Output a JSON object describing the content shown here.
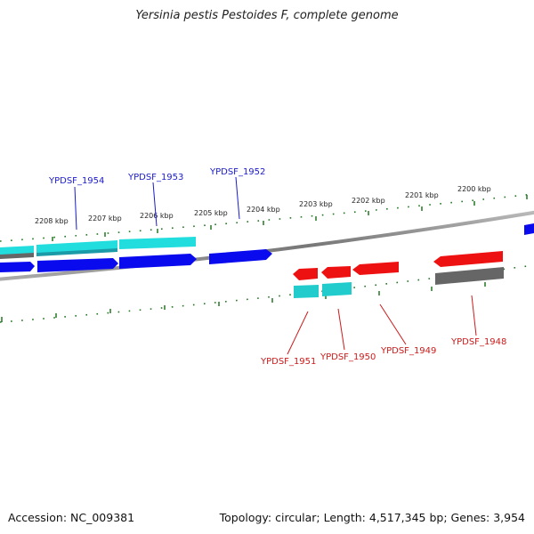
{
  "title": "Yersinia pestis Pestoides F, complete genome",
  "accession_text": "Accession: NC_009381",
  "summary_text": "Topology: circular; Length: 4,517,345 bp; Genes: 3,954",
  "colors": {
    "forward_label": "#1a1acc",
    "reverse_label": "#cc1a1a",
    "cds_forward": "#0a0aee",
    "cds_reverse": "#ee1111",
    "gene_forward": "#22dddd",
    "gene_reverse": "#22cccc",
    "gene_other": "#666666",
    "ticks": "#227722",
    "backbone": "#888888"
  },
  "kbp_labels": [
    "2208 kbp",
    "2207 kbp",
    "2206 kbp",
    "2205 kbp",
    "2204 kbp",
    "2203 kbp",
    "2202 kbp",
    "2201 kbp",
    "2200 kbp"
  ],
  "forward_genes": [
    "YPDSF_1954",
    "YPDSF_1953",
    "YPDSF_1952"
  ],
  "reverse_genes": [
    "YPDSF_1951",
    "YPDSF_1950",
    "YPDSF_1949",
    "YPDSF_1948"
  ]
}
